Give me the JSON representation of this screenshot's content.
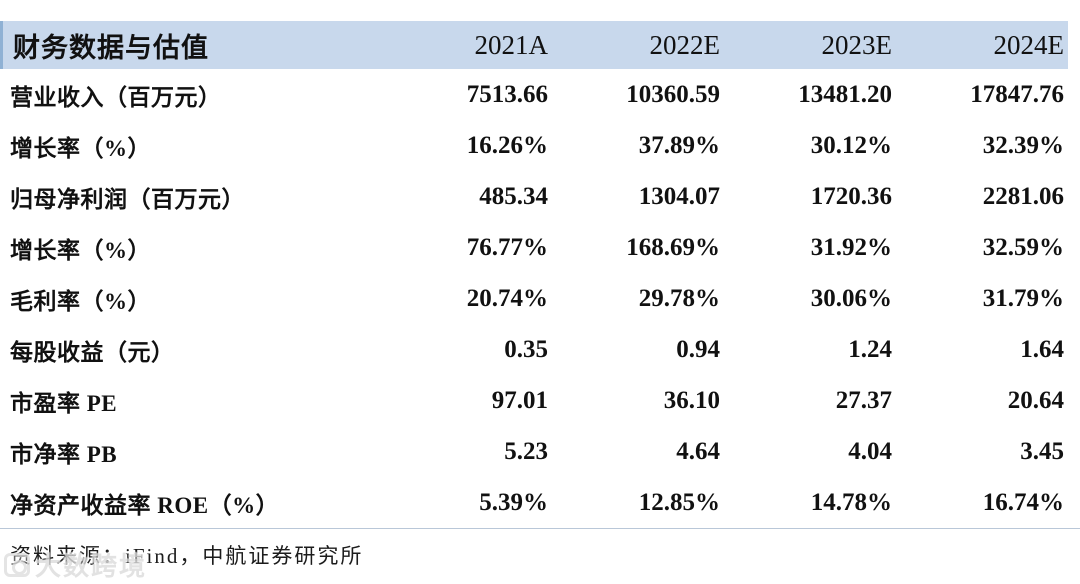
{
  "table": {
    "title": "财务数据与估值",
    "columns": [
      "2021A",
      "2022E",
      "2023E",
      "2024E"
    ],
    "rows": [
      {
        "label": "营业收入（百万元）",
        "values": [
          "7513.66",
          "10360.59",
          "13481.20",
          "17847.76"
        ]
      },
      {
        "label": "增长率（%）",
        "values": [
          "16.26%",
          "37.89%",
          "30.12%",
          "32.39%"
        ]
      },
      {
        "label": "归母净利润（百万元）",
        "values": [
          "485.34",
          "1304.07",
          "1720.36",
          "2281.06"
        ]
      },
      {
        "label": "增长率（%）",
        "values": [
          "76.77%",
          "168.69%",
          "31.92%",
          "32.59%"
        ]
      },
      {
        "label": "毛利率（%）",
        "values": [
          "20.74%",
          "29.78%",
          "30.06%",
          "31.79%"
        ]
      },
      {
        "label": "每股收益（元）",
        "values": [
          "0.35",
          "0.94",
          "1.24",
          "1.64"
        ]
      },
      {
        "label": "市盈率 PE",
        "values": [
          "97.01",
          "36.10",
          "27.37",
          "20.64"
        ]
      },
      {
        "label": "市净率 PB",
        "values": [
          "5.23",
          "4.64",
          "4.04",
          "3.45"
        ]
      },
      {
        "label": "净资产收益率 ROE（%）",
        "values": [
          "5.39%",
          "12.85%",
          "14.78%",
          "16.74%"
        ]
      }
    ]
  },
  "footer": {
    "source": "资料来源：iFind，中航证券研究所"
  },
  "watermark": {
    "text": "大数跨境"
  },
  "colors": {
    "header_bg": "#c8d8ec",
    "header_edge": "#8fb1d4",
    "divider": "#b9c7d8",
    "text": "#111111",
    "watermark": "#dcdcdc"
  }
}
